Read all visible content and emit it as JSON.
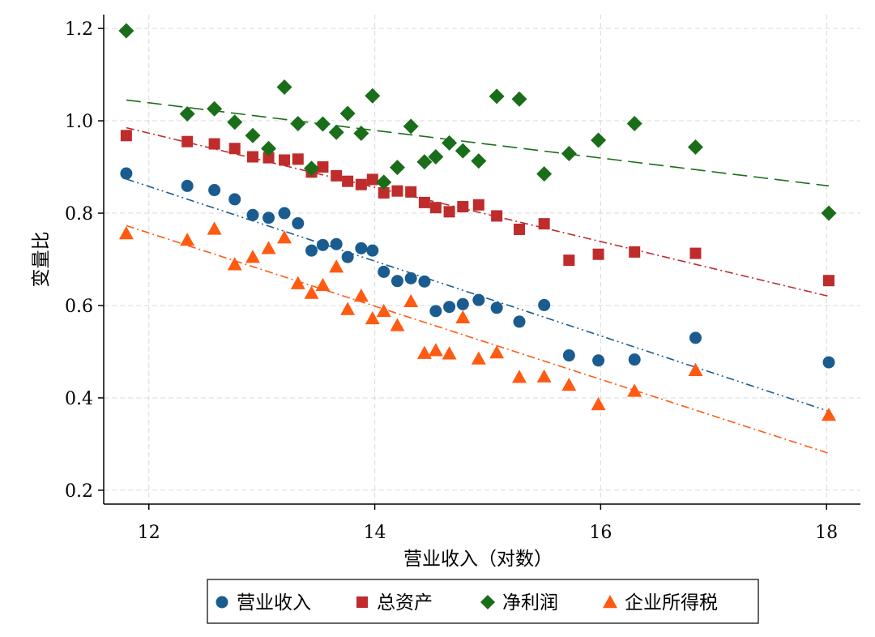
{
  "chart_data": {
    "type": "scatter",
    "xlabel": "营业收入（对数）",
    "ylabel": "变量比",
    "xlim": [
      11.6,
      18.3
    ],
    "ylim": [
      0.17,
      1.23
    ],
    "xticks": [
      12,
      14,
      16,
      18
    ],
    "xtick_labels": [
      "12",
      "14",
      "16",
      "18"
    ],
    "yticks": [
      0.2,
      0.4,
      0.6,
      0.8,
      1.0,
      1.2
    ],
    "ytick_labels": [
      "0.2",
      "0.4",
      "0.6",
      "0.8",
      "1.0",
      "1.2"
    ],
    "grid": true,
    "legend_position": "bottom",
    "x": [
      11.8,
      12.34,
      12.58,
      12.76,
      12.92,
      13.06,
      13.2,
      13.32,
      13.44,
      13.54,
      13.66,
      13.76,
      13.88,
      13.98,
      14.08,
      14.2,
      14.32,
      14.44,
      14.54,
      14.66,
      14.78,
      14.92,
      15.08,
      15.28,
      15.5,
      15.72,
      15.98,
      16.3,
      16.84,
      18.02
    ],
    "series": [
      {
        "name": "营业收入",
        "marker": "circle",
        "color": "#1a5c8f",
        "line_style": "dashdotdot",
        "values": [
          0.886,
          0.859,
          0.85,
          0.83,
          0.796,
          0.79,
          0.8,
          0.778,
          0.719,
          0.731,
          0.733,
          0.705,
          0.724,
          0.719,
          0.673,
          0.653,
          0.659,
          0.652,
          0.588,
          0.597,
          0.603,
          0.612,
          0.595,
          0.565,
          0.601,
          0.492,
          0.481,
          0.483,
          0.53,
          0.477
        ],
        "fit": [
          0.874,
          0.371
        ]
      },
      {
        "name": "总资产",
        "marker": "square",
        "color": "#bf2c2c",
        "line_style": "dashdot",
        "values": [
          0.968,
          0.955,
          0.95,
          0.94,
          0.922,
          0.92,
          0.915,
          0.917,
          0.889,
          0.9,
          0.881,
          0.869,
          0.862,
          0.873,
          0.844,
          0.848,
          0.846,
          0.823,
          0.812,
          0.803,
          0.814,
          0.818,
          0.794,
          0.765,
          0.777,
          0.698,
          0.711,
          0.716,
          0.713,
          0.654
        ],
        "fit": [
          0.985,
          0.62
        ]
      },
      {
        "name": "净利润",
        "marker": "diamond",
        "color": "#1a6e1a",
        "line_style": "longdash",
        "values": [
          1.195,
          1.015,
          1.026,
          0.997,
          0.968,
          0.94,
          1.073,
          0.994,
          0.897,
          0.993,
          0.975,
          1.016,
          0.973,
          1.054,
          0.867,
          0.899,
          0.988,
          0.911,
          0.922,
          0.952,
          0.935,
          0.913,
          1.053,
          1.047,
          0.885,
          0.929,
          0.958,
          0.994,
          0.943,
          0.8
        ],
        "fit": [
          1.045,
          0.859
        ]
      },
      {
        "name": "企业所得税",
        "marker": "triangle",
        "color": "#ff5a12",
        "line_style": "dashdot",
        "values": [
          0.756,
          0.742,
          0.766,
          0.689,
          0.705,
          0.724,
          0.747,
          0.648,
          0.627,
          0.644,
          0.684,
          0.592,
          0.621,
          0.572,
          0.588,
          0.557,
          0.609,
          0.497,
          0.503,
          0.496,
          0.574,
          0.485,
          0.498,
          0.445,
          0.446,
          0.428,
          0.386,
          0.415,
          0.46,
          0.363
        ],
        "fit": [
          0.773,
          0.28
        ]
      }
    ]
  }
}
